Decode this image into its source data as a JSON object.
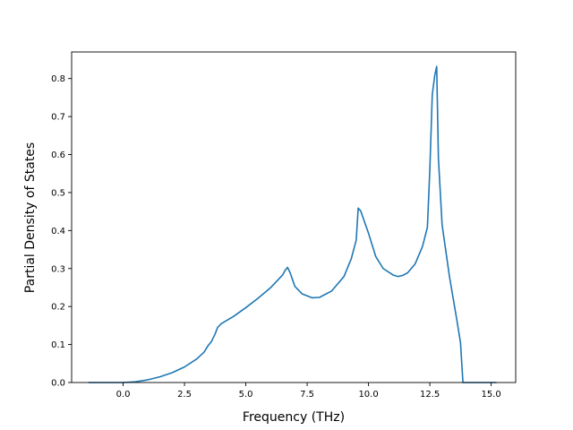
{
  "chart_data": {
    "type": "line",
    "title": "",
    "xlabel": "Frequency (THz)",
    "ylabel": "Partial Density of States",
    "xlim": [
      -2.1,
      16.0
    ],
    "ylim": [
      0.0,
      0.87
    ],
    "xticks": [
      0.0,
      2.5,
      5.0,
      7.5,
      10.0,
      12.5,
      15.0
    ],
    "xtick_labels": [
      "0.0",
      "2.5",
      "5.0",
      "7.5",
      "10.0",
      "12.5",
      "15.0"
    ],
    "yticks": [
      0.0,
      0.1,
      0.2,
      0.3,
      0.4,
      0.5,
      0.6,
      0.7,
      0.8
    ],
    "ytick_labels": [
      "0.0",
      "0.1",
      "0.2",
      "0.3",
      "0.4",
      "0.5",
      "0.6",
      "0.7",
      "0.8"
    ],
    "grid": false,
    "legend": false,
    "series": [
      {
        "color": "#1f77b4",
        "x": [
          -1.4,
          -1.0,
          -0.5,
          0.0,
          0.5,
          1.0,
          1.5,
          2.0,
          2.5,
          3.0,
          3.3,
          3.45,
          3.6,
          3.75,
          3.85,
          4.0,
          4.5,
          5.0,
          5.5,
          6.0,
          6.5,
          6.6,
          6.7,
          6.8,
          7.0,
          7.3,
          7.7,
          8.0,
          8.5,
          9.0,
          9.3,
          9.5,
          9.58,
          9.68,
          10.0,
          10.3,
          10.6,
          11.0,
          11.2,
          11.4,
          11.6,
          11.9,
          12.2,
          12.4,
          12.5,
          12.6,
          12.7,
          12.78,
          12.85,
          13.0,
          13.3,
          13.6,
          13.75,
          13.85,
          14.0,
          14.5,
          15.0,
          15.2
        ],
        "y": [
          0.0,
          0.0,
          0.0,
          0.0,
          0.002,
          0.007,
          0.015,
          0.026,
          0.041,
          0.062,
          0.08,
          0.096,
          0.108,
          0.128,
          0.145,
          0.155,
          0.174,
          0.197,
          0.222,
          0.249,
          0.283,
          0.295,
          0.303,
          0.29,
          0.253,
          0.233,
          0.223,
          0.224,
          0.241,
          0.279,
          0.326,
          0.375,
          0.459,
          0.452,
          0.393,
          0.331,
          0.3,
          0.283,
          0.279,
          0.282,
          0.289,
          0.312,
          0.358,
          0.408,
          0.56,
          0.758,
          0.808,
          0.832,
          0.59,
          0.415,
          0.279,
          0.165,
          0.105,
          0.0,
          0.0,
          0.0,
          0.0,
          0.0
        ]
      }
    ]
  }
}
